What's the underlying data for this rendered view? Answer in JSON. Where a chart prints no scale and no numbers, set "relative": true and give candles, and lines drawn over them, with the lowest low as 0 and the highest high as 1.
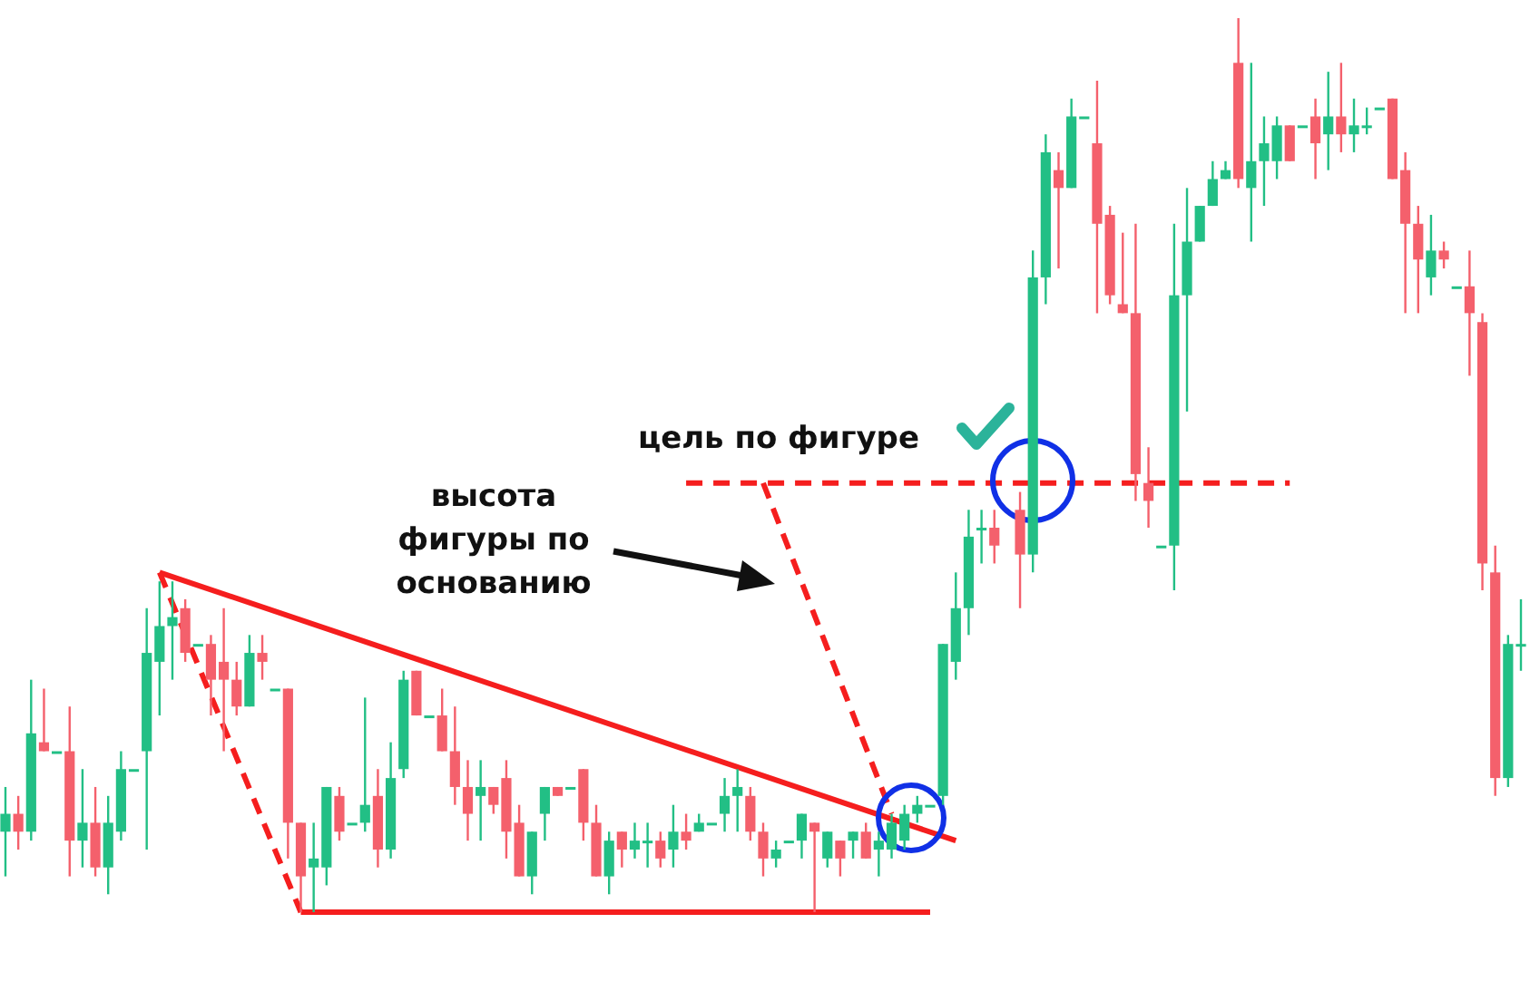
{
  "chart_data": {
    "type": "candlestick",
    "relative": true,
    "categories": [
      null,
      null,
      null,
      null,
      null,
      null,
      null,
      null,
      null,
      null,
      null,
      null,
      null,
      null,
      null,
      null,
      null,
      null,
      null,
      null,
      null,
      null,
      null,
      null,
      null,
      null,
      null,
      null,
      null,
      null,
      null,
      null,
      null,
      null,
      null,
      null,
      null,
      null,
      null,
      null,
      null,
      null,
      null,
      null,
      null,
      null,
      null,
      null,
      null,
      null,
      null,
      null,
      null,
      null,
      null,
      null,
      null,
      null,
      null,
      null,
      null,
      null,
      null,
      null,
      null,
      null,
      null,
      null,
      null,
      null,
      null,
      null,
      null,
      null,
      null,
      null,
      null,
      null,
      null,
      null,
      null,
      null,
      null,
      null,
      null,
      null,
      null,
      null,
      null,
      null,
      null,
      null,
      null,
      null,
      null,
      null,
      null,
      null,
      null,
      null,
      null,
      null,
      null,
      null,
      null,
      null,
      null,
      null,
      null,
      null,
      null,
      null,
      null,
      null,
      null,
      null,
      null,
      null,
      null
    ],
    "ohlc": [
      [
        0.09,
        0.14,
        0.04,
        0.11
      ],
      [
        0.11,
        0.13,
        0.07,
        0.09
      ],
      [
        0.09,
        0.26,
        0.08,
        0.2
      ],
      [
        0.19,
        0.25,
        0.18,
        0.18
      ],
      [
        0.18,
        0.18,
        0.18,
        0.18
      ],
      [
        0.18,
        0.23,
        0.04,
        0.08
      ],
      [
        0.08,
        0.16,
        0.05,
        0.1
      ],
      [
        0.1,
        0.14,
        0.04,
        0.05
      ],
      [
        0.05,
        0.13,
        0.02,
        0.1
      ],
      [
        0.09,
        0.18,
        0.08,
        0.16
      ],
      [
        0.16,
        0.16,
        0.16,
        0.16
      ],
      [
        0.18,
        0.34,
        0.07,
        0.29
      ],
      [
        0.28,
        0.37,
        0.22,
        0.32
      ],
      [
        0.32,
        0.37,
        0.26,
        0.33
      ],
      [
        0.34,
        0.35,
        0.28,
        0.29
      ],
      [
        0.3,
        0.3,
        0.3,
        0.3
      ],
      [
        0.3,
        0.31,
        0.22,
        0.26
      ],
      [
        0.28,
        0.34,
        0.18,
        0.26
      ],
      [
        0.26,
        0.28,
        0.22,
        0.23
      ],
      [
        0.23,
        0.31,
        0.23,
        0.29
      ],
      [
        0.29,
        0.31,
        0.26,
        0.28
      ],
      [
        0.25,
        0.25,
        0.25,
        0.25
      ],
      [
        0.25,
        0.25,
        0.06,
        0.1
      ],
      [
        0.1,
        0.1,
        0,
        0.04
      ],
      [
        0.05,
        0.1,
        0,
        0.06
      ],
      [
        0.05,
        0.14,
        0.03,
        0.14
      ],
      [
        0.13,
        0.14,
        0.08,
        0.09
      ],
      [
        0.1,
        0.1,
        0.1,
        0.1
      ],
      [
        0.1,
        0.24,
        0.09,
        0.12
      ],
      [
        0.13,
        0.16,
        0.05,
        0.07
      ],
      [
        0.07,
        0.19,
        0.06,
        0.15
      ],
      [
        0.16,
        0.27,
        0.15,
        0.26
      ],
      [
        0.27,
        0.27,
        0.22,
        0.22
      ],
      [
        0.22,
        0.22,
        0.22,
        0.22
      ],
      [
        0.22,
        0.25,
        0.18,
        0.18
      ],
      [
        0.18,
        0.23,
        0.12,
        0.14
      ],
      [
        0.14,
        0.17,
        0.08,
        0.11
      ],
      [
        0.13,
        0.17,
        0.08,
        0.14
      ],
      [
        0.14,
        0.14,
        0.11,
        0.12
      ],
      [
        0.15,
        0.17,
        0.06,
        0.09
      ],
      [
        0.1,
        0.12,
        0.04,
        0.04
      ],
      [
        0.04,
        0.09,
        0.02,
        0.09
      ],
      [
        0.11,
        0.14,
        0.08,
        0.14
      ],
      [
        0.14,
        0.14,
        0.13,
        0.13
      ],
      [
        0.14,
        0.14,
        0.14,
        0.14
      ],
      [
        0.16,
        0.16,
        0.08,
        0.1
      ],
      [
        0.1,
        0.12,
        0.04,
        0.04
      ],
      [
        0.04,
        0.09,
        0.02,
        0.08
      ],
      [
        0.09,
        0.09,
        0.05,
        0.07
      ],
      [
        0.07,
        0.1,
        0.06,
        0.08
      ],
      [
        0.08,
        0.1,
        0.05,
        0.08
      ],
      [
        0.08,
        0.09,
        0.05,
        0.06
      ],
      [
        0.07,
        0.12,
        0.05,
        0.09
      ],
      [
        0.09,
        0.11,
        0.07,
        0.08
      ],
      [
        0.09,
        0.11,
        0.09,
        0.1
      ],
      [
        0.1,
        0.1,
        0.1,
        0.1
      ],
      [
        0.11,
        0.15,
        0.09,
        0.13
      ],
      [
        0.13,
        0.16,
        0.09,
        0.14
      ],
      [
        0.13,
        0.14,
        0.08,
        0.09
      ],
      [
        0.09,
        0.1,
        0.04,
        0.06
      ],
      [
        0.06,
        0.08,
        0.05,
        0.07
      ],
      [
        0.08,
        0.08,
        0.08,
        0.08
      ],
      [
        0.08,
        0.11,
        0.06,
        0.11
      ],
      [
        0.1,
        0.1,
        0,
        0.09
      ],
      [
        0.06,
        0.09,
        0.05,
        0.09
      ],
      [
        0.08,
        0.08,
        0.04,
        0.06
      ],
      [
        0.08,
        0.09,
        0.06,
        0.09
      ],
      [
        0.09,
        0.1,
        0.06,
        0.06
      ],
      [
        0.07,
        0.09,
        0.04,
        0.08
      ],
      [
        0.07,
        0.11,
        0.06,
        0.1
      ],
      [
        0.08,
        0.12,
        0.07,
        0.11
      ],
      [
        0.11,
        0.13,
        0.1,
        0.12
      ],
      [
        0.12,
        0.12,
        0.12,
        0.12
      ],
      [
        0.13,
        0.3,
        0.12,
        0.3
      ],
      [
        0.28,
        0.38,
        0.26,
        0.34
      ],
      [
        0.34,
        0.45,
        0.31,
        0.42
      ],
      [
        0.43,
        0.45,
        0.39,
        0.43
      ],
      [
        0.43,
        0.45,
        0.39,
        0.41
      ],
      null,
      [
        0.45,
        0.47,
        0.34,
        0.4
      ],
      [
        0.4,
        0.74,
        0.38,
        0.71
      ],
      [
        0.71,
        0.87,
        0.68,
        0.85
      ],
      [
        0.83,
        0.85,
        0.72,
        0.81
      ],
      [
        0.81,
        0.91,
        0.81,
        0.89
      ],
      [
        0.89,
        0.89,
        0.89,
        0.89
      ],
      [
        0.86,
        0.93,
        0.67,
        0.77
      ],
      [
        0.78,
        0.79,
        0.68,
        0.69
      ],
      [
        0.68,
        0.76,
        0.67,
        0.67
      ],
      [
        0.67,
        0.77,
        0.46,
        0.49
      ],
      [
        0.48,
        0.52,
        0.43,
        0.46
      ],
      [
        0.41,
        0.41,
        0.41,
        0.41
      ],
      [
        0.41,
        0.77,
        0.36,
        0.69
      ],
      [
        0.69,
        0.81,
        0.56,
        0.75
      ],
      [
        0.75,
        0.79,
        0.75,
        0.79
      ],
      [
        0.79,
        0.84,
        0.79,
        0.82
      ],
      [
        0.82,
        0.84,
        0.82,
        0.83
      ],
      [
        0.95,
        1,
        0.81,
        0.82
      ],
      [
        0.81,
        0.95,
        0.75,
        0.84
      ],
      [
        0.84,
        0.89,
        0.79,
        0.86
      ],
      [
        0.84,
        0.89,
        0.82,
        0.88
      ],
      [
        0.88,
        0.88,
        0.84,
        0.84
      ],
      [
        0.88,
        0.88,
        0.88,
        0.88
      ],
      [
        0.89,
        0.91,
        0.82,
        0.86
      ],
      [
        0.87,
        0.94,
        0.83,
        0.89
      ],
      [
        0.89,
        0.95,
        0.85,
        0.87
      ],
      [
        0.87,
        0.91,
        0.85,
        0.88
      ],
      [
        0.88,
        0.9,
        0.87,
        0.88
      ],
      [
        0.9,
        0.9,
        0.9,
        0.9
      ],
      [
        0.91,
        0.91,
        0.82,
        0.82
      ],
      [
        0.83,
        0.85,
        0.67,
        0.77
      ],
      [
        0.77,
        0.79,
        0.67,
        0.73
      ],
      [
        0.71,
        0.78,
        0.69,
        0.74
      ],
      [
        0.74,
        0.75,
        0.72,
        0.73
      ],
      [
        0.7,
        0.7,
        0.7,
        0.7
      ],
      [
        0.7,
        0.74,
        0.6,
        0.67
      ],
      [
        0.66,
        0.67,
        0.36,
        0.39
      ],
      [
        0.38,
        0.41,
        0.13,
        0.15
      ],
      [
        0.15,
        0.31,
        0.14,
        0.3
      ],
      [
        0.3,
        0.35,
        0.27,
        0.3
      ]
    ],
    "colors": [
      "#22bf85",
      "#f4606c",
      "#22bf85",
      "#f4606c",
      "#22bf85",
      "#f4606c",
      "#22bf85",
      "#f4606c",
      "#22bf85",
      "#22bf85",
      "#22bf85",
      "#22bf85",
      "#22bf85",
      "#22bf85",
      "#f4606c",
      "#22bf85",
      "#f4606c",
      "#f4606c",
      "#f4606c",
      "#22bf85",
      "#f4606c",
      "#22bf85",
      "#f4606c",
      "#f4606c",
      "#22bf85",
      "#22bf85",
      "#f4606c",
      "#22bf85",
      "#22bf85",
      "#f4606c",
      "#22bf85",
      "#22bf85",
      "#f4606c",
      "#22bf85",
      "#f4606c",
      "#f4606c",
      "#f4606c",
      "#22bf85",
      "#f4606c",
      "#f4606c",
      "#f4606c",
      "#22bf85",
      "#22bf85",
      "#f4606c",
      "#22bf85",
      "#f4606c",
      "#f4606c",
      "#22bf85",
      "#f4606c",
      "#22bf85",
      "#22bf85",
      "#f4606c",
      "#22bf85",
      "#f4606c",
      "#22bf85",
      "#22bf85",
      "#22bf85",
      "#22bf85",
      "#f4606c",
      "#f4606c",
      "#22bf85",
      "#22bf85",
      "#22bf85",
      "#f4606c",
      "#22bf85",
      "#f4606c",
      "#22bf85",
      "#f4606c",
      "#22bf85",
      "#22bf85",
      "#22bf85",
      "#22bf85",
      "#22bf85",
      "#22bf85",
      "#22bf85",
      "#22bf85",
      "#22bf85",
      "#f4606c",
      null,
      "#f4606c",
      "#22bf85",
      "#22bf85",
      "#f4606c",
      "#22bf85",
      "#22bf85",
      "#f4606c",
      "#f4606c",
      "#f4606c",
      "#f4606c",
      "#f4606c",
      "#22bf85",
      "#22bf85",
      "#22bf85",
      "#22bf85",
      "#22bf85",
      "#22bf85",
      "#f4606c",
      "#22bf85",
      "#22bf85",
      "#22bf85",
      "#f4606c",
      "#22bf85",
      "#f4606c",
      "#22bf85",
      "#f4606c",
      "#22bf85",
      "#22bf85",
      "#22bf85",
      "#f4606c",
      "#f4606c",
      "#f4606c",
      "#22bf85",
      "#f4606c",
      "#22bf85",
      "#f4606c",
      "#f4606c",
      "#f4606c",
      "#22bf85",
      "#22bf85"
    ],
    "series": [
      {
        "type": "line",
        "color": "#f51e1e",
        "line_style": "solid",
        "values": [
          null,
          null,
          null,
          null,
          null,
          null,
          null,
          null,
          null,
          null,
          null,
          null,
          0.38,
          null,
          null,
          null,
          null,
          null,
          null,
          null,
          null,
          null,
          null,
          null,
          null,
          null,
          null,
          null,
          null,
          null,
          null,
          null,
          null,
          null,
          null,
          null,
          null,
          null,
          null,
          null,
          null,
          null,
          null,
          null,
          null,
          null,
          null,
          null,
          null,
          null,
          null,
          null,
          null,
          null,
          null,
          null,
          null,
          null,
          null,
          null,
          null,
          null,
          null,
          null,
          null,
          null,
          null,
          null,
          null,
          null,
          null,
          null,
          null,
          null,
          0.08,
          null,
          null,
          null,
          null,
          null,
          null,
          null,
          null,
          null,
          null,
          null,
          null,
          null,
          null,
          null,
          null,
          null,
          null,
          null,
          null,
          null,
          null,
          null,
          null,
          null,
          null,
          null,
          null,
          null,
          null,
          null,
          null,
          null,
          null,
          null,
          null,
          null,
          null,
          null,
          null,
          null,
          null,
          null,
          null
        ]
      },
      {
        "type": "line",
        "color": "#f51e1e",
        "line_style": "dashed",
        "values": [
          null,
          null,
          null,
          null,
          null,
          null,
          null,
          null,
          null,
          null,
          null,
          null,
          0.38,
          null,
          null,
          null,
          null,
          null,
          null,
          null,
          null,
          null,
          null,
          0,
          null,
          null,
          null,
          null,
          null,
          null,
          null,
          null,
          null,
          null,
          null,
          null,
          null,
          null,
          null,
          null,
          null,
          null,
          null,
          null,
          null,
          null,
          null,
          null,
          null,
          null,
          null,
          null,
          null,
          null,
          null,
          null,
          null,
          null,
          null,
          null,
          null,
          null,
          null,
          null,
          null,
          null,
          null,
          null,
          null,
          null,
          null,
          null,
          null,
          null,
          null,
          null,
          null,
          null,
          null,
          null,
          null,
          null,
          null,
          null,
          null,
          null,
          null,
          null,
          null,
          null,
          null,
          null,
          null,
          null,
          null,
          null,
          null,
          null,
          null,
          null,
          null,
          null,
          null,
          null,
          null,
          null,
          null,
          null,
          null,
          null,
          null,
          null,
          null,
          null,
          null,
          null,
          null,
          null,
          null
        ]
      },
      {
        "type": "line",
        "color": "#f51e1e",
        "line_style": "solid",
        "values": [
          null,
          null,
          null,
          null,
          null,
          null,
          null,
          null,
          null,
          null,
          null,
          null,
          null,
          null,
          null,
          null,
          null,
          null,
          null,
          null,
          null,
          null,
          null,
          0,
          null,
          null,
          null,
          null,
          null,
          null,
          null,
          null,
          null,
          null,
          null,
          null,
          null,
          null,
          null,
          null,
          null,
          null,
          null,
          null,
          null,
          null,
          null,
          null,
          null,
          null,
          null,
          null,
          null,
          null,
          null,
          null,
          null,
          null,
          null,
          null,
          null,
          null,
          null,
          null,
          null,
          null,
          null,
          null,
          null,
          null,
          null,
          null,
          0,
          null,
          null,
          null,
          null,
          null,
          null,
          null,
          null,
          null,
          null,
          null,
          null,
          null,
          null,
          null,
          null,
          null,
          null,
          null,
          null,
          null,
          null,
          null,
          null,
          null,
          null,
          null,
          null,
          null,
          null,
          null,
          null,
          null,
          null,
          null,
          null,
          null,
          null,
          null,
          null,
          null,
          null,
          null,
          null,
          null,
          null
        ]
      },
      {
        "type": "line",
        "color": "#f51e1e",
        "line_style": "dashed",
        "values": [
          null,
          null,
          null,
          null,
          null,
          null,
          null,
          null,
          null,
          null,
          null,
          null,
          null,
          null,
          null,
          null,
          null,
          null,
          null,
          null,
          null,
          null,
          null,
          null,
          null,
          null,
          null,
          null,
          null,
          null,
          null,
          null,
          null,
          null,
          null,
          null,
          null,
          null,
          null,
          null,
          null,
          null,
          null,
          null,
          null,
          null,
          null,
          null,
          null,
          null,
          null,
          null,
          null,
          null,
          null,
          null,
          null,
          null,
          null,
          0.48,
          null,
          null,
          null,
          null,
          null,
          null,
          null,
          null,
          null,
          0.11,
          null,
          null,
          null,
          null,
          null,
          null,
          null,
          null,
          null,
          null,
          null,
          null,
          null,
          null,
          null,
          null,
          null,
          null,
          null,
          null,
          null,
          null,
          null,
          null,
          null,
          null,
          null,
          null,
          null,
          null,
          null,
          null,
          null,
          null,
          null,
          null,
          null,
          null,
          null,
          null,
          null,
          null,
          null,
          null,
          null,
          null,
          null,
          null,
          null
        ]
      },
      {
        "type": "line",
        "color": "#f51e1e",
        "line_style": "dashed",
        "values": [
          null,
          null,
          null,
          null,
          null,
          null,
          null,
          null,
          null,
          null,
          null,
          null,
          null,
          null,
          null,
          null,
          null,
          null,
          null,
          null,
          null,
          null,
          null,
          null,
          null,
          null,
          null,
          null,
          null,
          null,
          null,
          null,
          null,
          null,
          null,
          null,
          null,
          null,
          null,
          null,
          null,
          null,
          null,
          null,
          null,
          null,
          null,
          null,
          null,
          null,
          null,
          null,
          null,
          0.48,
          null,
          null,
          null,
          null,
          null,
          null,
          null,
          null,
          null,
          null,
          null,
          null,
          null,
          null,
          null,
          null,
          null,
          null,
          null,
          null,
          null,
          null,
          null,
          null,
          null,
          null,
          null,
          null,
          null,
          null,
          null,
          null,
          null,
          null,
          null,
          null,
          null,
          null,
          null,
          null,
          null,
          null,
          null,
          null,
          null,
          null,
          0.48,
          null,
          null,
          null,
          null,
          null,
          null,
          null,
          null,
          null,
          null,
          null,
          null,
          null,
          null,
          null,
          null,
          null,
          null
        ]
      }
    ],
    "annotations": [
      "цель по фигуре",
      "высота фигуры по основанию"
    ]
  }
}
